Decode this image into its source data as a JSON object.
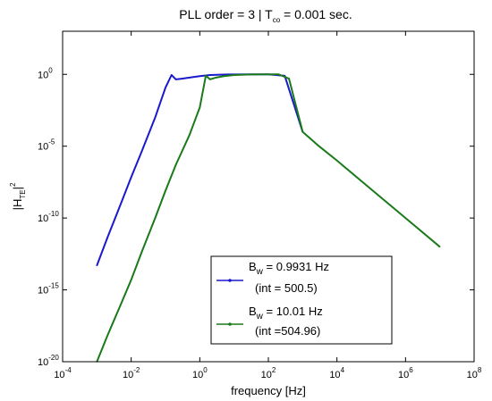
{
  "chart_data": {
    "type": "line",
    "title": {
      "main": "PLL order = 3  |  T",
      "sub": "co",
      "rest": " = 0.001 sec."
    },
    "xlabel": "frequency [Hz]",
    "ylabel": {
      "pre": "|H",
      "sub": "TE",
      "post": "|",
      "sup": "2"
    },
    "x_scale": "log",
    "y_scale": "log",
    "xlim": [
      0.0001,
      100000000
    ],
    "ylim": [
      1e-20,
      1000.0
    ],
    "x_ticks": [
      {
        "value": 0.0001,
        "base": "10",
        "exp": "-4"
      },
      {
        "value": 0.01,
        "base": "10",
        "exp": "-2"
      },
      {
        "value": 1,
        "base": "10",
        "exp": "0"
      },
      {
        "value": 100,
        "base": "10",
        "exp": "2"
      },
      {
        "value": 10000,
        "base": "10",
        "exp": "4"
      },
      {
        "value": 1000000,
        "base": "10",
        "exp": "6"
      },
      {
        "value": 100000000,
        "base": "10",
        "exp": "8"
      }
    ],
    "y_ticks": [
      {
        "value": 1,
        "base": "10",
        "exp": "0"
      },
      {
        "value": 1e-05,
        "base": "10",
        "exp": "-5"
      },
      {
        "value": 1e-10,
        "base": "10",
        "exp": "-10"
      },
      {
        "value": 1e-15,
        "base": "10",
        "exp": "-15"
      },
      {
        "value": 1e-20,
        "base": "10",
        "exp": "-20"
      }
    ],
    "grid": false,
    "legend": {
      "placement": "bottom-center"
    },
    "series": [
      {
        "name_parts": {
          "pre": "B",
          "sub": "w",
          "post": " = 0.9931 Hz"
        },
        "note": "(int = 500.5)",
        "color": "#1a1acc",
        "x": [
          0.001,
          0.002,
          0.005,
          0.01,
          0.02,
          0.05,
          0.1,
          0.15,
          0.2,
          0.3,
          0.5,
          1,
          2,
          5,
          10,
          30,
          100,
          300,
          1000
        ],
        "y": [
          5e-14,
          4e-12,
          1e-09,
          7e-08,
          4e-06,
          0.001,
          0.12,
          0.9,
          0.45,
          0.5,
          0.6,
          0.75,
          0.9,
          0.97,
          0.99,
          1,
          1,
          0.8,
          0.0001
        ]
      },
      {
        "name_parts": {
          "pre": "B",
          "sub": "w",
          "post": " = 10.01 Hz"
        },
        "note": "(int =504.96)",
        "color": "#1a7a1a",
        "x": [
          0.001,
          0.002,
          0.005,
          0.01,
          0.02,
          0.05,
          0.1,
          0.2,
          0.5,
          1,
          1.5,
          2,
          3,
          5,
          10,
          30,
          100,
          200,
          400,
          1000,
          3000,
          10000,
          100000,
          1000000,
          10000000
        ],
        "y": [
          1e-20,
          6e-19,
          1e-16,
          5e-15,
          4e-13,
          1e-10,
          8e-09,
          5e-07,
          6e-05,
          0.005,
          0.8,
          0.45,
          0.6,
          0.75,
          0.9,
          0.98,
          1,
          1,
          0.5,
          0.0001,
          1e-05,
          1e-06,
          1e-08,
          1e-10,
          1e-12
        ]
      }
    ]
  }
}
